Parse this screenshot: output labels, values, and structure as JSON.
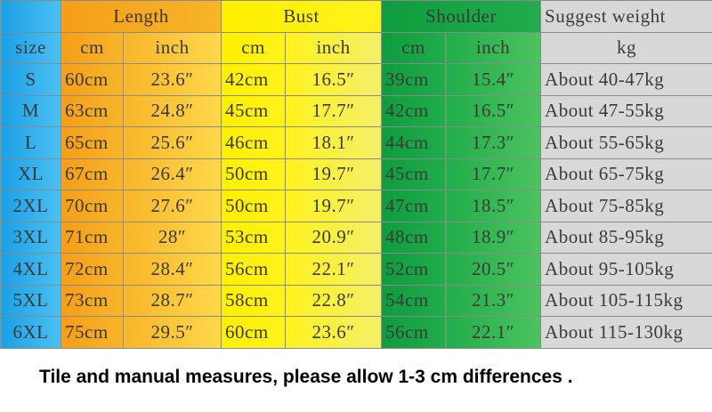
{
  "header": {
    "groups": [
      "Length",
      "Bust",
      "Shoulder",
      "Suggest weight"
    ],
    "sub": [
      "size",
      "cm",
      "inch",
      "cm",
      "inch",
      "cm",
      "inch",
      "kg"
    ]
  },
  "table": {
    "rows": [
      [
        "S",
        "60cm",
        "23.6″",
        "42cm",
        "16.5″",
        "39cm",
        "15.4″",
        "About 40-47kg"
      ],
      [
        "M",
        "63cm",
        "24.8″",
        "45cm",
        "17.7″",
        "42cm",
        "16.5″",
        "About 47-55kg"
      ],
      [
        "L",
        "65cm",
        "25.6″",
        "46cm",
        "18.1″",
        "44cm",
        "17.3″",
        "About 55-65kg"
      ],
      [
        "XL",
        "67cm",
        "26.4″",
        "50cm",
        "19.7″",
        "45cm",
        "17.7″",
        "About 65-75kg"
      ],
      [
        "2XL",
        "70cm",
        "27.6″",
        "50cm",
        "19.7″",
        "47cm",
        "18.5″",
        "About 75-85kg"
      ],
      [
        "3XL",
        "71cm",
        "28″",
        "53cm",
        "20.9″",
        "48cm",
        "18.9″",
        "About 85-95kg"
      ],
      [
        "4XL",
        "72cm",
        "28.4″",
        "56cm",
        "22.1″",
        "52cm",
        "20.5″",
        "About 95-105kg"
      ],
      [
        "5XL",
        "73cm",
        "28.7″",
        "58cm",
        "22.8″",
        "54cm",
        "21.3″",
        "About 105-115kg"
      ],
      [
        "6XL",
        "75cm",
        "29.5″",
        "60cm",
        "23.6″",
        "56cm",
        "22.1″",
        "About 115-130kg"
      ]
    ]
  },
  "note": "Tile and manual measures, please allow 1-3 cm differences ."
}
